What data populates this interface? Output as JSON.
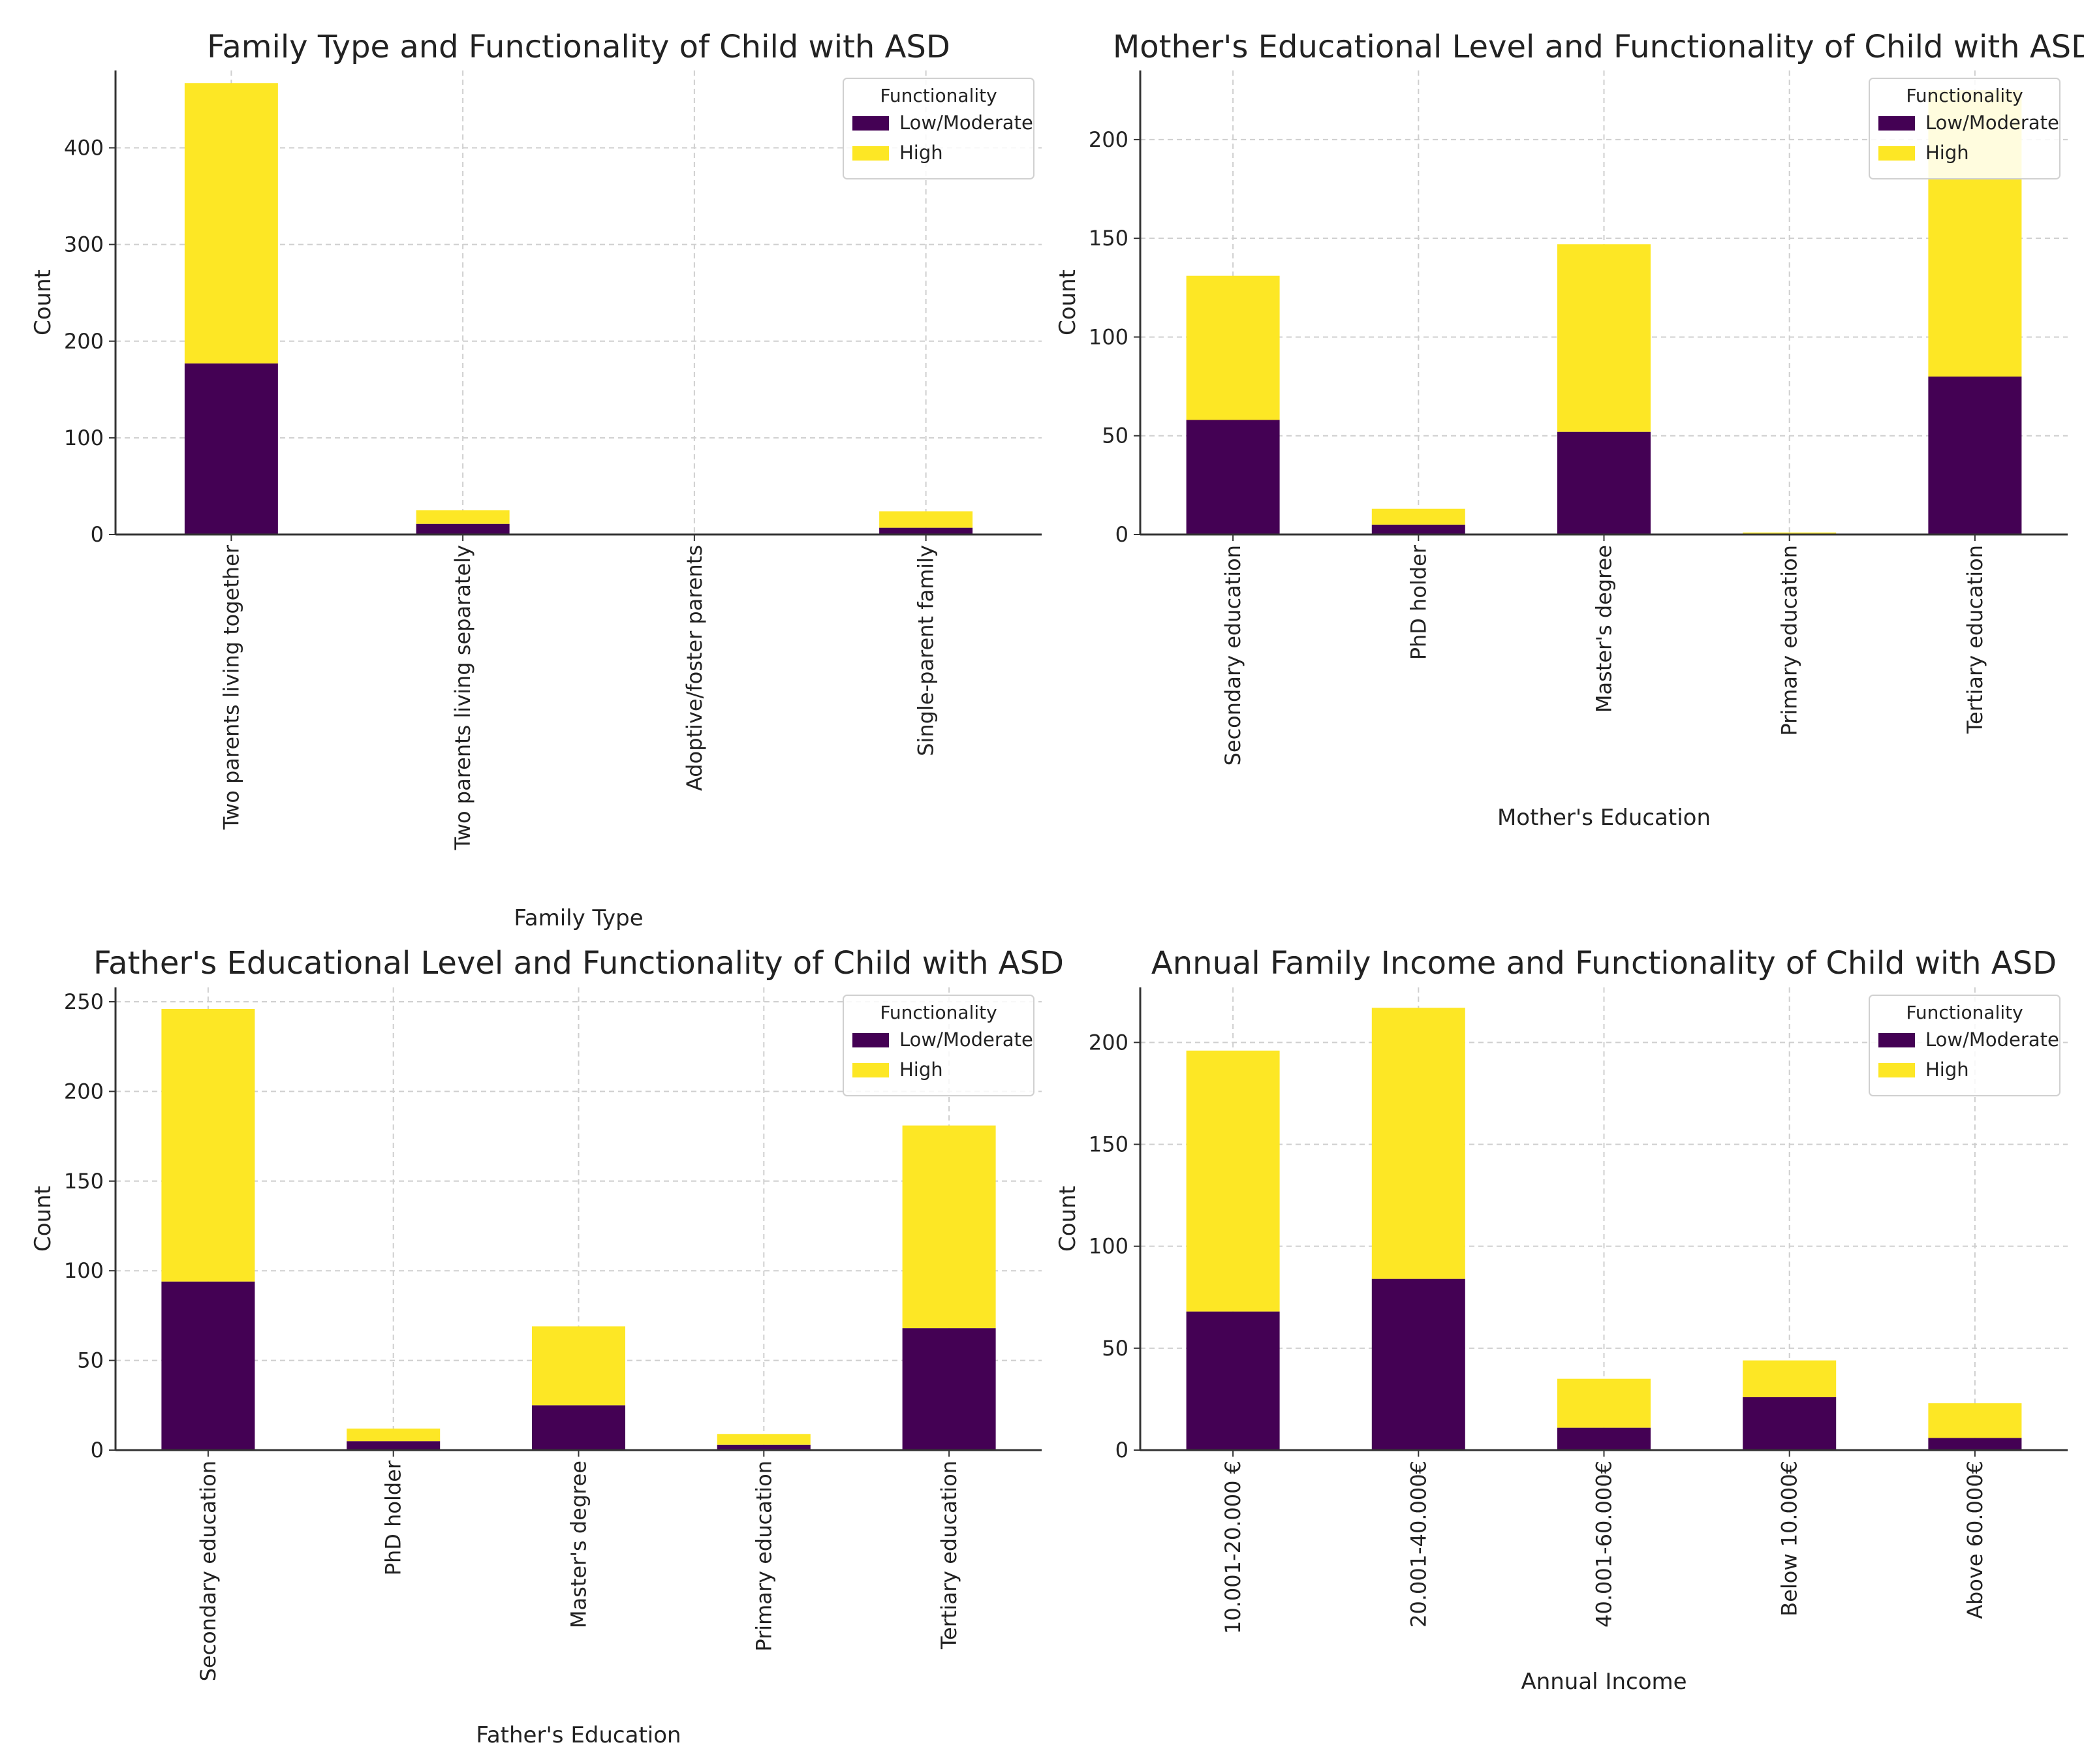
{
  "colors": {
    "low": "#440154",
    "high": "#fde725",
    "axis": "#333333",
    "grid": "#cfcfcf"
  },
  "chart_data": [
    {
      "type": "bar",
      "stacked": true,
      "title": "Family Type and Functionality of Child with ASD",
      "xlabel": "Family Type",
      "ylabel": "Count",
      "ylim": [
        0,
        480
      ],
      "yticks": [
        0,
        100,
        200,
        300,
        400
      ],
      "categories": [
        "Two parents living together",
        "Two parents living separately",
        "Adoptive/foster parents",
        "Single-parent family"
      ],
      "series": [
        {
          "name": "Low/Moderate",
          "values": [
            177,
            11,
            0,
            7
          ]
        },
        {
          "name": "High",
          "values": [
            290,
            14,
            0,
            17
          ]
        }
      ],
      "legend": {
        "title": "Functionality",
        "labels": [
          "Low/Moderate",
          "High"
        ],
        "placement": "top-right"
      }
    },
    {
      "type": "bar",
      "stacked": true,
      "title": "Mother's Educational Level and Functionality of Child with ASD",
      "xlabel": "Mother's Education",
      "ylabel": "Count",
      "ylim": [
        0,
        235
      ],
      "yticks": [
        0,
        50,
        100,
        150,
        200
      ],
      "categories": [
        "Secondary education",
        "PhD holder",
        "Master's degree",
        "Primary education",
        "Tertiary education"
      ],
      "series": [
        {
          "name": "Low/Moderate",
          "values": [
            58,
            5,
            52,
            0,
            80
          ]
        },
        {
          "name": "High",
          "values": [
            73,
            8,
            95,
            1,
            145
          ]
        }
      ],
      "legend": {
        "title": "Functionality",
        "labels": [
          "Low/Moderate",
          "High"
        ],
        "placement": "top-right"
      }
    },
    {
      "type": "bar",
      "stacked": true,
      "title": "Father's Educational Level and Functionality of Child with ASD",
      "xlabel": "Father's Education",
      "ylabel": "Count",
      "ylim": [
        0,
        258
      ],
      "yticks": [
        0,
        50,
        100,
        150,
        200,
        250
      ],
      "categories": [
        "Secondary education",
        "PhD holder",
        "Master's degree",
        "Primary education",
        "Tertiary education"
      ],
      "series": [
        {
          "name": "Low/Moderate",
          "values": [
            94,
            5,
            25,
            3,
            68
          ]
        },
        {
          "name": "High",
          "values": [
            152,
            7,
            44,
            6,
            113
          ]
        }
      ],
      "legend": {
        "title": "Functionality",
        "labels": [
          "Low/Moderate",
          "High"
        ],
        "placement": "top-right"
      }
    },
    {
      "type": "bar",
      "stacked": true,
      "title": "Annual Family Income and Functionality of Child with ASD",
      "xlabel": "Annual Income",
      "ylabel": "Count",
      "ylim": [
        0,
        227
      ],
      "yticks": [
        0,
        50,
        100,
        150,
        200
      ],
      "categories": [
        "10.001-20.000 €",
        "20.001-40.000€",
        "40.001-60.000€",
        "Below 10.000€",
        "Above 60.000€"
      ],
      "series": [
        {
          "name": "Low/Moderate",
          "values": [
            68,
            84,
            11,
            26,
            6
          ]
        },
        {
          "name": "High",
          "values": [
            128,
            133,
            24,
            18,
            17
          ]
        }
      ],
      "legend": {
        "title": "Functionality",
        "labels": [
          "Low/Moderate",
          "High"
        ],
        "placement": "top-right"
      }
    }
  ]
}
